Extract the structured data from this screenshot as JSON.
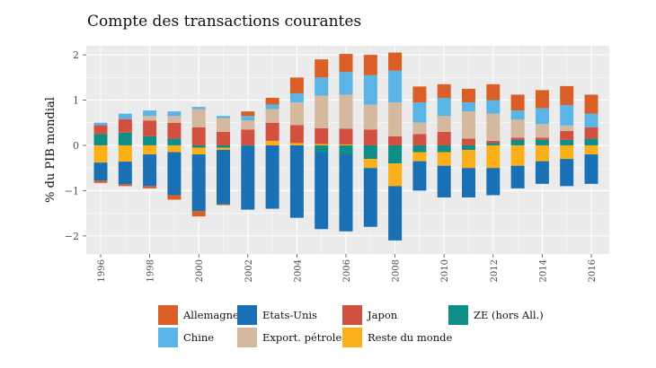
{
  "chart_data": {
    "type": "bar",
    "stacked": true,
    "title": "Compte des transactions courantes",
    "ylabel": "% du PIB mondial",
    "xlabel": "",
    "ylim": [
      -2.4,
      2.2
    ],
    "yticks": [
      -2,
      -1,
      0,
      1,
      2
    ],
    "xtick_labels": [
      "1996",
      "1998",
      "2000",
      "2002",
      "2004",
      "2006",
      "2008",
      "2010",
      "2012",
      "2014",
      "2016"
    ],
    "categories": [
      "1996",
      "1997",
      "1998",
      "1999",
      "2000",
      "2001",
      "2002",
      "2003",
      "2004",
      "2005",
      "2006",
      "2007",
      "2008",
      "2009",
      "2010",
      "2011",
      "2012",
      "2013",
      "2014",
      "2015",
      "2016"
    ],
    "series": [
      {
        "name": "Allemagne",
        "color": "#D95F27",
        "values": [
          -0.05,
          -0.04,
          -0.05,
          -0.1,
          -0.12,
          -0.02,
          0.1,
          0.15,
          0.35,
          0.4,
          0.4,
          0.45,
          0.4,
          0.35,
          0.3,
          0.3,
          0.35,
          0.35,
          0.4,
          0.42,
          0.42
        ]
      },
      {
        "name": "Chine",
        "color": "#5AB4E5",
        "values": [
          0.05,
          0.12,
          0.12,
          0.1,
          0.05,
          0.05,
          0.1,
          0.1,
          0.2,
          0.4,
          0.5,
          0.65,
          0.7,
          0.45,
          0.4,
          0.2,
          0.3,
          0.2,
          0.35,
          0.45,
          0.3
        ]
      },
      {
        "name": "Etats-Unis",
        "color": "#1A70B5",
        "values": [
          -0.4,
          -0.5,
          -0.7,
          -0.95,
          -1.25,
          -1.2,
          -1.4,
          -1.4,
          -1.6,
          -1.7,
          -1.7,
          -1.3,
          -1.2,
          -0.65,
          -0.7,
          -0.65,
          -0.6,
          -0.5,
          -0.5,
          -0.6,
          -0.65
        ]
      },
      {
        "name": "Export. pétrole",
        "color": "#D4B99E",
        "values": [
          0.0,
          0.0,
          0.1,
          0.15,
          0.4,
          0.3,
          0.2,
          0.3,
          0.5,
          0.72,
          0.75,
          0.55,
          0.75,
          0.25,
          0.35,
          0.6,
          0.6,
          0.4,
          0.3,
          0.12,
          0.0
        ]
      },
      {
        "name": "Japon",
        "color": "#D1503F",
        "values": [
          0.2,
          0.3,
          0.35,
          0.35,
          0.4,
          0.3,
          0.35,
          0.4,
          0.4,
          0.35,
          0.35,
          0.35,
          0.2,
          0.25,
          0.3,
          0.15,
          0.05,
          0.05,
          0.05,
          0.2,
          0.25
        ]
      },
      {
        "name": "Reste du monde",
        "color": "#FBB01A",
        "values": [
          -0.38,
          -0.36,
          -0.2,
          -0.15,
          -0.15,
          -0.05,
          0.0,
          0.1,
          0.05,
          0.03,
          0.02,
          -0.2,
          -0.5,
          -0.2,
          -0.3,
          -0.4,
          -0.5,
          -0.45,
          -0.35,
          -0.3,
          -0.2
        ]
      },
      {
        "name": "ZE (hors All.)",
        "color": "#0E8E86",
        "values": [
          0.25,
          0.28,
          0.2,
          0.15,
          -0.05,
          -0.05,
          -0.02,
          0.0,
          0.0,
          -0.15,
          -0.2,
          -0.3,
          -0.4,
          -0.15,
          -0.15,
          -0.1,
          0.05,
          0.12,
          0.12,
          0.12,
          0.15
        ]
      }
    ],
    "legend_order": [
      "Allemagne",
      "Etats-Unis",
      "Japon",
      "ZE (hors All.)",
      "Chine",
      "Export. pétrole",
      "Reste du monde"
    ],
    "stack_order_positive": [
      "ZE (hors All.)",
      "Reste du monde",
      "Japon",
      "Export. pétrole",
      "Chine",
      "Allemagne"
    ],
    "stack_order_negative": [
      "ZE (hors All.)",
      "Reste du monde",
      "Etats-Unis",
      "Japon",
      "Allemagne",
      "Chine",
      "Export. pétrole"
    ],
    "grid": true,
    "legend_position": "bottom"
  }
}
